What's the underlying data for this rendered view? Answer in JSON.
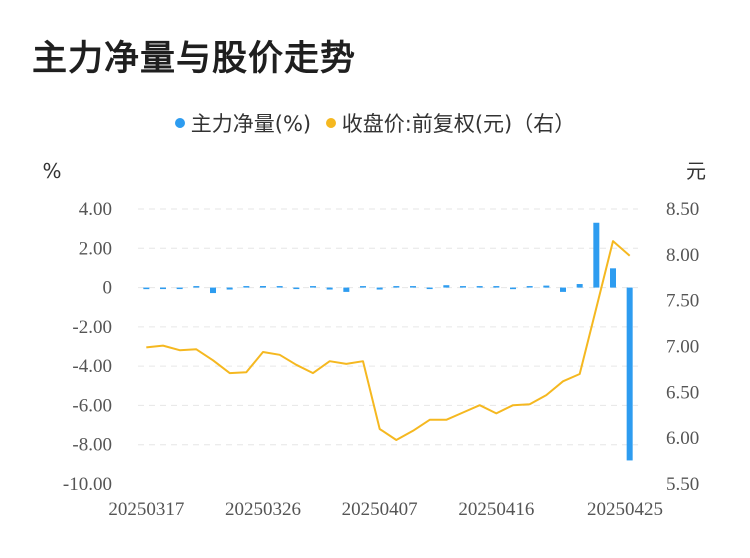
{
  "title": "主力净量与股价走势",
  "legend": [
    {
      "label": "主力净量(%)",
      "color": "#2d9cf0",
      "icon": "circle"
    },
    {
      "label": "收盘价:前复权(元)（右）",
      "color": "#f5b820",
      "icon": "circle"
    }
  ],
  "chart_data": {
    "type": "bar+line",
    "left_unit": "%",
    "right_unit": "元",
    "x_tick_labels": [
      "20250317",
      "20250326",
      "20250407",
      "20250416",
      "20250425"
    ],
    "x_tick_indices": [
      0,
      7,
      14,
      21,
      28
    ],
    "left_axis": {
      "ylim": [
        -10,
        4
      ],
      "ticks": [
        4,
        2,
        0,
        -2,
        -4,
        -6,
        -8,
        -10
      ],
      "tick_labels": [
        "4.00",
        "2.00",
        "0",
        "-2.00",
        "-4.00",
        "-6.00",
        "-8.00",
        "-10.00"
      ]
    },
    "right_axis": {
      "ylim": [
        5.5,
        8.5
      ],
      "ticks": [
        8.5,
        8.0,
        7.5,
        7.0,
        6.5,
        6.0,
        5.5
      ],
      "tick_labels": [
        "8.50",
        "8.00",
        "7.50",
        "7.00",
        "6.50",
        "6.00",
        "5.50"
      ]
    },
    "grid": true,
    "legend_position": "top-center",
    "series": [
      {
        "name": "主力净量(%)",
        "type": "bar",
        "color": "#2d9cf0",
        "values": [
          -0.08,
          -0.06,
          -0.05,
          0.03,
          -0.28,
          -0.1,
          0.04,
          0.08,
          0.07,
          -0.02,
          0.05,
          -0.1,
          -0.22,
          0.05,
          -0.1,
          0.03,
          0.03,
          -0.04,
          0.12,
          0.04,
          0.04,
          0.03,
          -0.08,
          0.04,
          0.1,
          -0.22,
          0.18,
          3.3,
          0.98,
          -8.8
        ]
      },
      {
        "name": "收盘价:前复权(元)（右）",
        "type": "line",
        "color": "#f5b820",
        "values": [
          6.99,
          7.01,
          6.96,
          6.97,
          6.85,
          6.71,
          6.72,
          6.94,
          6.91,
          6.8,
          6.71,
          6.84,
          6.81,
          6.84,
          6.1,
          5.98,
          6.08,
          6.2,
          6.2,
          6.28,
          6.36,
          6.27,
          6.36,
          6.37,
          6.47,
          6.62,
          6.7,
          7.42,
          8.15,
          7.99
        ]
      }
    ]
  }
}
